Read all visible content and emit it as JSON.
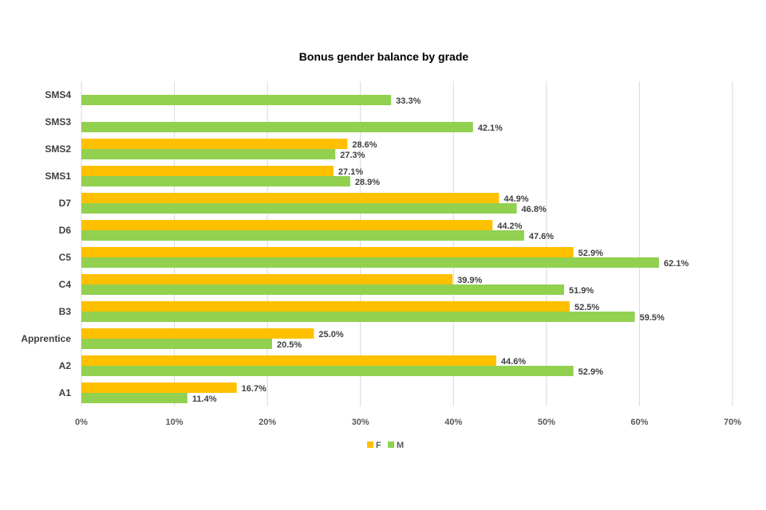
{
  "chart_data": {
    "type": "bar",
    "orientation": "horizontal",
    "title": "Bonus gender balance by grade",
    "xlabel": "",
    "ylabel": "",
    "categories": [
      "A1",
      "A2",
      "Apprentice",
      "B3",
      "C4",
      "C5",
      "D6",
      "D7",
      "SMS1",
      "SMS2",
      "SMS3",
      "SMS4"
    ],
    "series": [
      {
        "name": "F",
        "color": "#ffc000",
        "values": [
          16.7,
          44.6,
          25.0,
          52.5,
          39.9,
          52.9,
          44.2,
          44.9,
          27.1,
          28.6,
          null,
          null
        ]
      },
      {
        "name": "M",
        "color": "#92d050",
        "values": [
          11.4,
          52.9,
          20.5,
          59.5,
          51.9,
          62.1,
          47.6,
          46.8,
          28.9,
          27.3,
          42.1,
          33.3
        ]
      }
    ],
    "data_labels": {
      "F": [
        "16.7%",
        "44.6%",
        "25.0%",
        "52.5%",
        "39.9%",
        "52.9%",
        "44.2%",
        "44.9%",
        "27.1%",
        "28.6%",
        "",
        ""
      ],
      "M": [
        "11.4%",
        "52.9%",
        "20.5%",
        "59.5%",
        "51.9%",
        "62.1%",
        "47.6%",
        "46.8%",
        "28.9%",
        "27.3%",
        "42.1%",
        "33.3%"
      ]
    },
    "xlim": [
      0,
      70
    ],
    "ticks": [
      0,
      10,
      20,
      30,
      40,
      50,
      60,
      70
    ],
    "tick_labels": [
      "0%",
      "10%",
      "20%",
      "30%",
      "40%",
      "50%",
      "60%",
      "70%"
    ],
    "grid": true,
    "legend_position": "bottom",
    "category_order": "bottom-to-top"
  }
}
